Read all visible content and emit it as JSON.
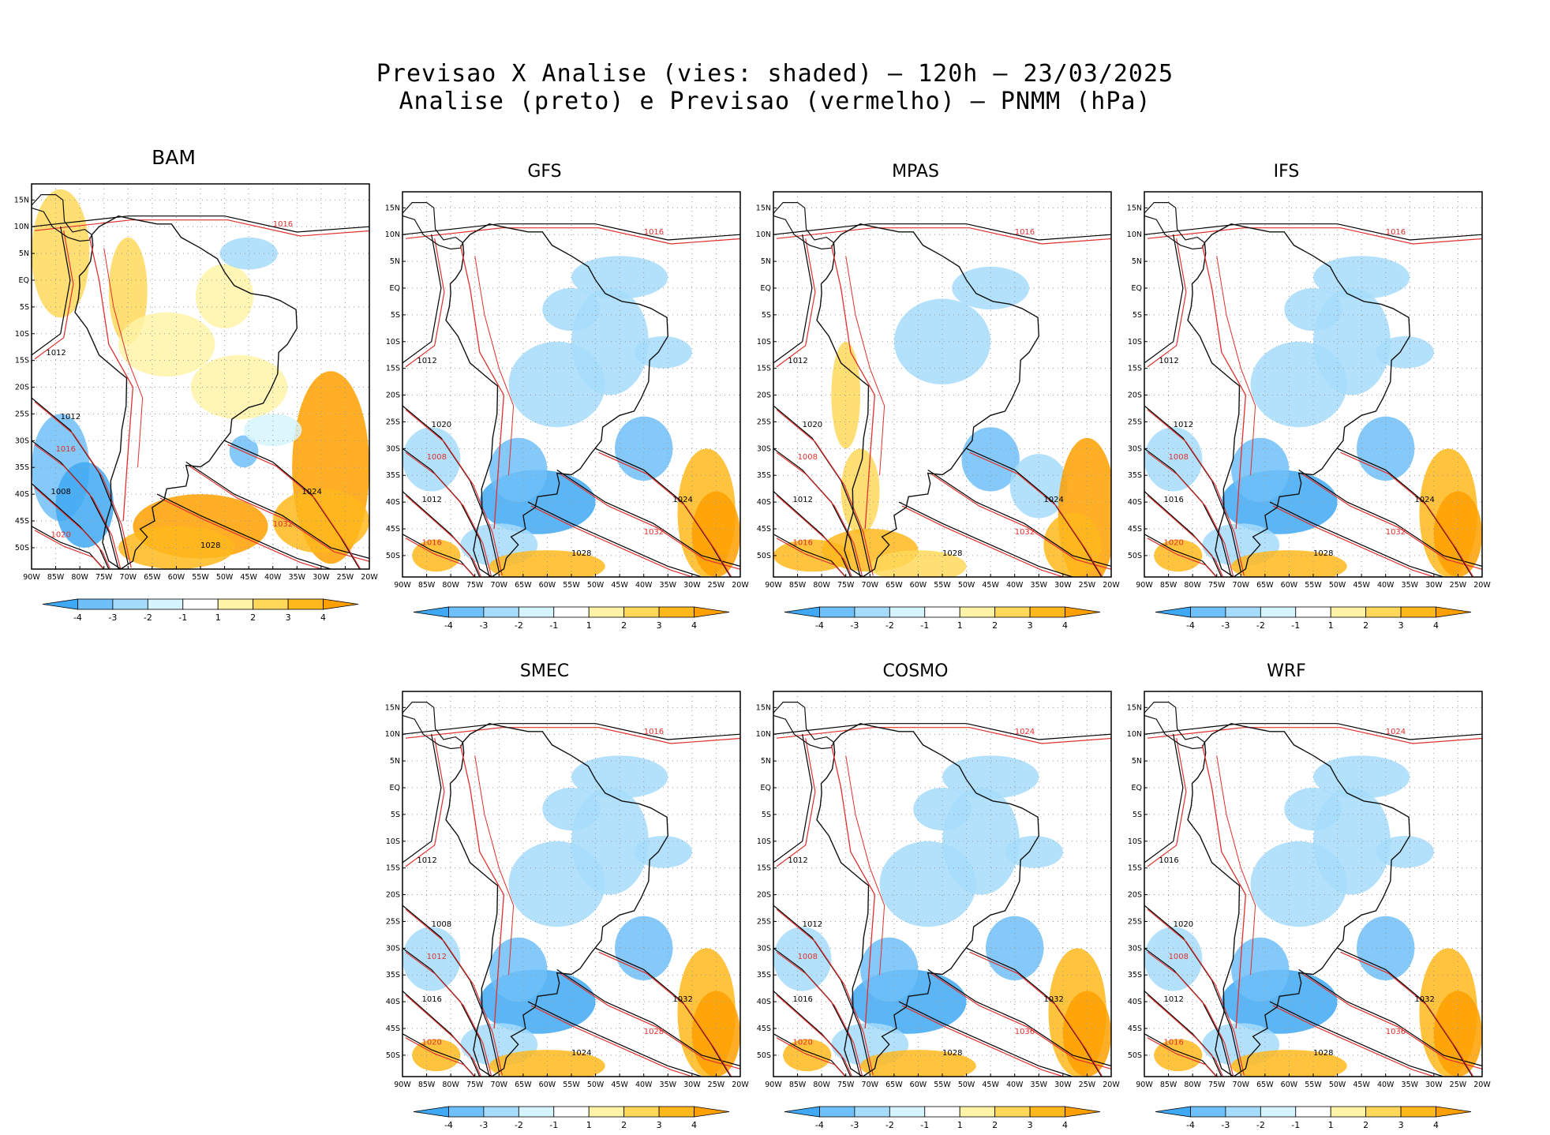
{
  "titles": {
    "line1": "Previsao X Analise (vies: shaded) — 120h — 23/03/2025",
    "line2": "Analise (preto) e Previsao (vermelho) — PNMM (hPa)"
  },
  "axes": {
    "lat_labels": [
      "15N",
      "10N",
      "5N",
      "EQ",
      "5S",
      "10S",
      "15S",
      "20S",
      "25S",
      "30S",
      "35S",
      "40S",
      "45S",
      "50S"
    ],
    "lon_labels": [
      "90W",
      "85W",
      "80W",
      "75W",
      "70W",
      "65W",
      "60W",
      "55W",
      "50W",
      "45W",
      "40W",
      "35W",
      "30W",
      "25W",
      "20W"
    ]
  },
  "colorbar": {
    "labels": [
      "-4",
      "-3",
      "-2",
      "-1",
      "1",
      "2",
      "3",
      "4"
    ],
    "colors": [
      "#3fa9f5",
      "#6fc0f8",
      "#a6dcfb",
      "#d6f4fd",
      "#ffffff",
      "#fff3a8",
      "#ffd85a",
      "#ffb81c",
      "#ffa000"
    ]
  },
  "colors": {
    "analysis": "#000000",
    "forecast": "#e0302e",
    "coast": "#111111"
  },
  "panels": [
    {
      "id": "bam",
      "title": "BAM",
      "bias": "pos",
      "isobars": [
        "1012",
        "1016",
        "1008",
        "1020",
        "1028",
        "1032",
        "1024",
        "1016",
        "1012"
      ]
    },
    {
      "id": "gfs",
      "title": "GFS",
      "bias": "neg",
      "isobars": [
        "1020",
        "1008",
        "1012",
        "1016",
        "1028",
        "1032",
        "1024",
        "1016",
        "1012"
      ]
    },
    {
      "id": "mpas",
      "title": "MPAS",
      "bias": "mix",
      "isobars": [
        "1020",
        "1008",
        "1012",
        "1016",
        "1028",
        "1032",
        "1024",
        "1016",
        "1012"
      ]
    },
    {
      "id": "ifs",
      "title": "IFS",
      "bias": "neg",
      "isobars": [
        "1012",
        "1008",
        "1016",
        "1020",
        "1028",
        "1032",
        "1024",
        "1016",
        "1012"
      ]
    },
    {
      "id": "smec",
      "title": "SMEC",
      "bias": "neg",
      "isobars": [
        "1008",
        "1012",
        "1016",
        "1020",
        "1024",
        "1028",
        "1032",
        "1016",
        "1012"
      ]
    },
    {
      "id": "cosmo",
      "title": "COSMO",
      "bias": "neg",
      "isobars": [
        "1012",
        "1008",
        "1016",
        "1020",
        "1028",
        "1036",
        "1032",
        "1024",
        "1012"
      ]
    },
    {
      "id": "wrf",
      "title": "WRF",
      "bias": "neg",
      "isobars": [
        "1020",
        "1008",
        "1012",
        "1016",
        "1028",
        "1036",
        "1032",
        "1024",
        "1016"
      ]
    }
  ]
}
